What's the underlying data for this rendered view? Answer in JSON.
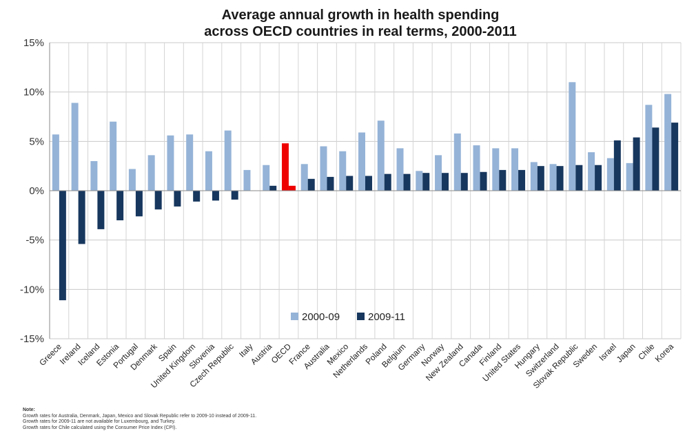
{
  "chart_data": {
    "type": "bar",
    "title_lines": [
      "Average annual growth in health spending",
      "across OECD countries in real terms, 2000-2011"
    ],
    "xlabel": "",
    "ylabel": "",
    "ylim": [
      -15,
      15
    ],
    "yticks": [
      15,
      10,
      5,
      0,
      -5,
      -10,
      -15
    ],
    "ytick_labels": [
      "15%",
      "10%",
      "5%",
      "0%",
      "-5%",
      "-10%",
      "-15%"
    ],
    "grid": true,
    "legend_position": "center",
    "categories": [
      "Greece",
      "Ireland",
      "Iceland",
      "Estonia",
      "Portugal",
      "Denmark",
      "Spain",
      "United Kingdom",
      "Slovenia",
      "Czech Republic",
      "Italy",
      "Austria",
      "OECD",
      "France",
      "Australia",
      "Mexico",
      "Netherlands",
      "Poland",
      "Belgium",
      "Germany",
      "Norway",
      "New Zealand",
      "Canada",
      "Finland",
      "United States",
      "Hungary",
      "Switzerland",
      "Slovak Republic",
      "Sweden",
      "Israel",
      "Japan",
      "Chile",
      "Korea"
    ],
    "highlight_category": "OECD",
    "highlight_color": "#ee0000",
    "series": [
      {
        "name": "2000-09",
        "color": "#95b3d7",
        "values": [
          5.7,
          8.9,
          3.0,
          7.0,
          2.2,
          3.6,
          5.6,
          5.7,
          4.0,
          6.1,
          2.1,
          2.6,
          4.8,
          2.7,
          4.5,
          4.0,
          5.9,
          7.1,
          4.3,
          2.0,
          3.6,
          5.8,
          4.6,
          4.3,
          4.3,
          2.9,
          2.7,
          11.0,
          3.9,
          3.3,
          2.8,
          8.7,
          9.8
        ]
      },
      {
        "name": "2009-11",
        "color": "#17375e",
        "values": [
          -11.1,
          -5.4,
          -3.9,
          -3.0,
          -2.6,
          -1.9,
          -1.6,
          -1.1,
          -1.0,
          -0.9,
          0.0,
          0.5,
          0.5,
          1.2,
          1.4,
          1.5,
          1.5,
          1.7,
          1.7,
          1.8,
          1.8,
          1.8,
          1.9,
          2.1,
          2.1,
          2.5,
          2.5,
          2.6,
          2.6,
          5.1,
          5.4,
          6.4,
          6.9
        ]
      }
    ]
  },
  "notes": {
    "heading": "Note:",
    "lines": [
      "Growth rates for Australia, Denmark, Japan, Mexico and Slovak Republic refer to 2009-10 instead of 2009-11.",
      "Growth rates for 2009-11 are not available for Luxembourg, and Turkey.",
      "Growth rates for Chile calculated using the Consumer Price Index (CPI)."
    ]
  }
}
